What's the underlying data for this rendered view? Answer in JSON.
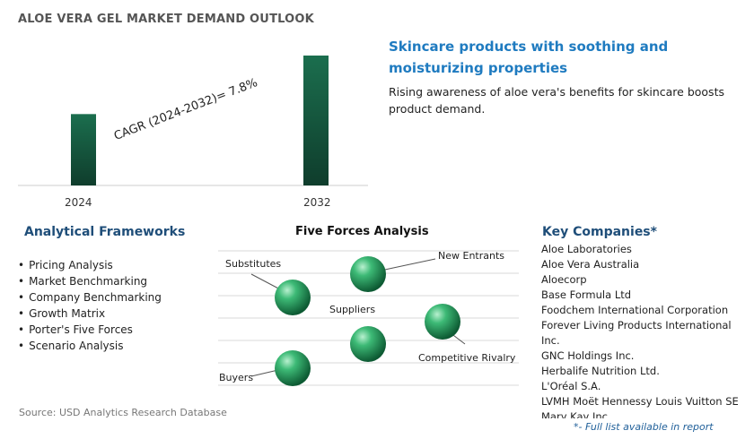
{
  "page_title": "ALOE VERA GEL MARKET DEMAND OUTLOOK",
  "chart_data": {
    "type": "bar",
    "categories": [
      "2024",
      "2032"
    ],
    "values": [
      1.0,
      1.82
    ],
    "annotation": "CAGR (2024-2032)=   7.8%",
    "colors": {
      "bar_top": "#1b6e4e",
      "bar_bottom": "#0f3d2c"
    }
  },
  "highlight": {
    "title": "Skincare products with soothing and moisturizing properties",
    "text": "Rising awareness of aloe vera's benefits for skincare boosts product demand."
  },
  "frameworks": {
    "heading": "Analytical Frameworks",
    "items": [
      "Pricing Analysis",
      "Market Benchmarking",
      "Company Benchmarking",
      "Growth Matrix",
      "Porter's Five Forces",
      "Scenario Analysis"
    ]
  },
  "five_forces": {
    "heading": "Five Forces Analysis",
    "labels": {
      "substitutes": "Substitutes",
      "new_entrants": "New Entrants",
      "suppliers": "Suppliers",
      "competitive_rivalry": "Competitive Rivalry",
      "buyers": "Buyers"
    },
    "sphere_color": "#2e9e62"
  },
  "companies": {
    "heading": "Key Companies*",
    "items": [
      "Aloe Laboratories",
      "Aloe Vera Australia",
      "Aloecorp",
      "Base Formula Ltd",
      "Foodchem International Corporation",
      "Forever Living Products International Inc.",
      "GNC Holdings Inc.",
      "Herbalife Nutrition Ltd.",
      "L'Oréal S.A.",
      "LVMH Moët Hennessy Louis Vuitton SE",
      "Mary Kay Inc."
    ]
  },
  "footer": {
    "source": "Source: USD Analytics Research Database",
    "full_list_note": "*- Full list available in report"
  }
}
